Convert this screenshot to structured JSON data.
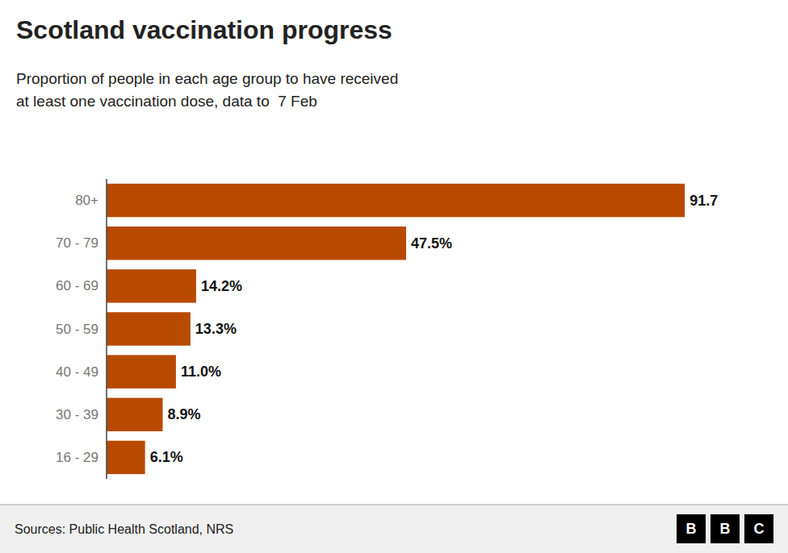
{
  "chart_data": {
    "type": "bar",
    "orientation": "horizontal",
    "title": "Scotland vaccination progress",
    "subtitle": [
      "Proportion of people in each age group to have received",
      "at least one vaccination dose, data to  7 Feb"
    ],
    "categories": [
      "80+",
      "70 - 79",
      "60 - 69",
      "50 - 59",
      "40 - 49",
      "30 - 39",
      "16 - 29"
    ],
    "values": [
      91.7,
      47.5,
      14.2,
      13.3,
      11.0,
      8.9,
      6.1
    ],
    "value_labels": [
      "91.7",
      "47.5%",
      "14.2%",
      "13.3%",
      "11.0%",
      "8.9%",
      "6.1%"
    ],
    "color": "#b84a00",
    "xlim": [
      0,
      100
    ],
    "data_labels": true,
    "tick_labels": "y",
    "grid": false,
    "source": "Sources: Public Health Scotland, NRS",
    "logo": [
      "B",
      "B",
      "C"
    ]
  }
}
